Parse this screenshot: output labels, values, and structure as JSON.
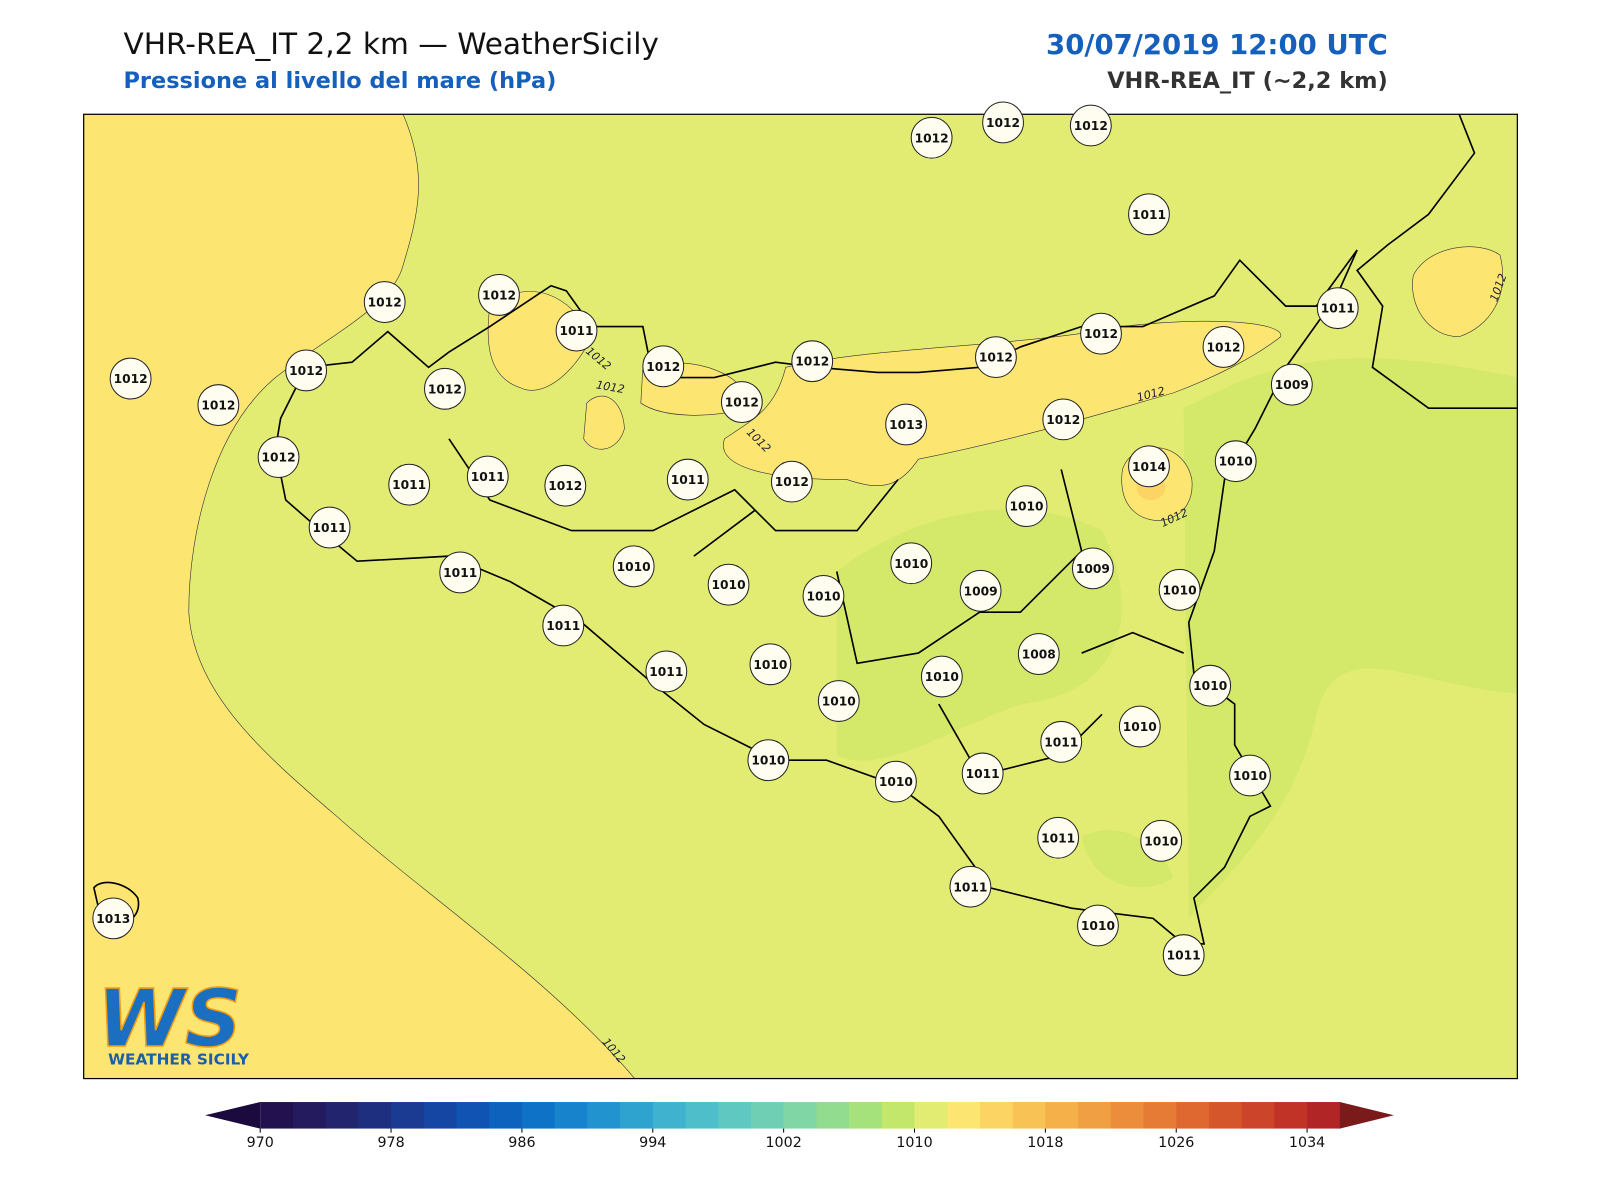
{
  "header": {
    "title": "VHR-REA_IT 2,2 km — WeatherSicily",
    "subtitle": "Pressione al livello del mare (hPa)",
    "date": "30/07/2019 12:00 UTC",
    "model": "VHR-REA_IT (~2,2 km)"
  },
  "stations": [
    "1012",
    "1012",
    "1012",
    "1011",
    "1012",
    "1012",
    "1011",
    "1012",
    "1012",
    "1012",
    "1012",
    "1012",
    "1012",
    "1012",
    "1012",
    "1012",
    "1012",
    "1011",
    "1009",
    "1013",
    "1012",
    "1012",
    "1011",
    "1011",
    "1012",
    "1011",
    "1012",
    "1014",
    "1010",
    "1010",
    "1011",
    "1011",
    "1010",
    "1010",
    "1010",
    "1010",
    "1009",
    "1009",
    "1010",
    "1011",
    "1011",
    "1010",
    "1008",
    "1010",
    "1010",
    "1010",
    "1010",
    "1011",
    "1010",
    "1010",
    "1011",
    "1010",
    "1011",
    "1010",
    "1011",
    "1010",
    "1011",
    "1013"
  ],
  "contour_labels": [
    "1012",
    "1012",
    "1012",
    "1012",
    "1012",
    "1012",
    "1012"
  ],
  "logo": {
    "mark": "WS",
    "name": "WEATHER SICILY"
  },
  "colorbar": {
    "lim": [
      970,
      1036
    ],
    "ticks": [
      970,
      978,
      986,
      994,
      1002,
      1010,
      1018,
      1026,
      1034
    ],
    "colors": [
      "#23104f",
      "#241a5e",
      "#23246e",
      "#1f2f80",
      "#1b3a92",
      "#1546a4",
      "#1153b2",
      "#0d62bd",
      "#0e72c6",
      "#1683cc",
      "#2193cf",
      "#2ea3d0",
      "#3eb2ce",
      "#4ebfca",
      "#5ec8c1",
      "#6ecfb4",
      "#80d6a4",
      "#92dc90",
      "#a6e27c",
      "#c2e76a",
      "#e2ec72",
      "#fce570",
      "#fcd463",
      "#f9c255",
      "#f5b04a",
      "#f09f42",
      "#ec8d3b",
      "#e67b35",
      "#df6830",
      "#d6562c",
      "#cc4429",
      "#c13327",
      "#b22526"
    ],
    "under": "#1a0a3d",
    "over": "#7a1a1a"
  }
}
